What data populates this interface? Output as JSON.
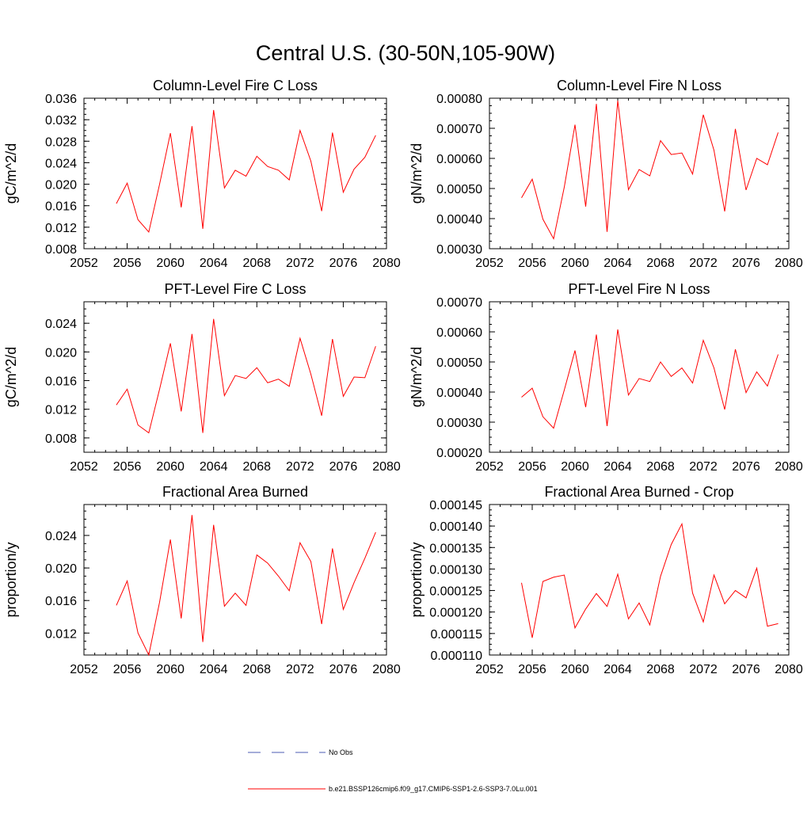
{
  "figure_title": "Central U.S. (30-50N,105-90W)",
  "chart_data": [
    {
      "type": "line",
      "title": "Column-Level Fire C Loss",
      "xlabel": "",
      "ylabel": "gC/m^2/d",
      "xlim": [
        2052,
        2080
      ],
      "ylim": [
        0.008,
        0.036
      ],
      "xticks": [
        "2052",
        "2056",
        "2060",
        "2064",
        "2068",
        "2072",
        "2076",
        "2080"
      ],
      "yticks": [
        "0.008",
        "0.012",
        "0.016",
        "0.020",
        "0.024",
        "0.028",
        "0.032",
        "0.036"
      ],
      "x": [
        2055,
        2056,
        2057,
        2058,
        2059,
        2060,
        2061,
        2062,
        2063,
        2064,
        2065,
        2066,
        2067,
        2068,
        2069,
        2070,
        2071,
        2072,
        2073,
        2074,
        2075,
        2076,
        2077,
        2078,
        2079
      ],
      "series": [
        {
          "name": "b.e21.BSSP126cmip6.f09_g17.CMIP6-SSP1-2.6-SSP3-7.0Lu.001",
          "color": "#ff0000",
          "values": [
            0.0164,
            0.0202,
            0.0134,
            0.0111,
            0.02,
            0.0295,
            0.0157,
            0.0308,
            0.0117,
            0.0338,
            0.0193,
            0.0226,
            0.0215,
            0.0252,
            0.0233,
            0.0226,
            0.0208,
            0.03,
            0.0243,
            0.015,
            0.0296,
            0.0185,
            0.0228,
            0.025,
            0.0291
          ]
        }
      ]
    },
    {
      "type": "line",
      "title": "Column-Level Fire N Loss",
      "xlabel": "",
      "ylabel": "gN/m^2/d",
      "xlim": [
        2052,
        2080
      ],
      "ylim": [
        0.0003,
        0.0008
      ],
      "xticks": [
        "2052",
        "2056",
        "2060",
        "2064",
        "2068",
        "2072",
        "2076",
        "2080"
      ],
      "yticks": [
        "0.00030",
        "0.00040",
        "0.00050",
        "0.00060",
        "0.00070",
        "0.00080"
      ],
      "x": [
        2055,
        2056,
        2057,
        2058,
        2059,
        2060,
        2061,
        2062,
        2063,
        2064,
        2065,
        2066,
        2067,
        2068,
        2069,
        2070,
        2071,
        2072,
        2073,
        2074,
        2075,
        2076,
        2077,
        2078,
        2079
      ],
      "series": [
        {
          "name": "b.e21.BSSP126cmip6.f09_g17.CMIP6-SSP1-2.6-SSP3-7.0Lu.001",
          "color": "#ff0000",
          "values": [
            0.000469,
            0.000531,
            0.000398,
            0.000333,
            0.000505,
            0.000712,
            0.00044,
            0.000781,
            0.000356,
            0.000792,
            0.000496,
            0.000563,
            0.000542,
            0.000659,
            0.000613,
            0.000618,
            0.000548,
            0.000745,
            0.000627,
            0.000424,
            0.000698,
            0.000495,
            0.0006,
            0.000579,
            0.000686
          ]
        }
      ]
    },
    {
      "type": "line",
      "title": "PFT-Level Fire C Loss",
      "xlabel": "",
      "ylabel": "gC/m^2/d",
      "xlim": [
        2052,
        2080
      ],
      "ylim": [
        0.006,
        0.027
      ],
      "xticks": [
        "2052",
        "2056",
        "2060",
        "2064",
        "2068",
        "2072",
        "2076",
        "2080"
      ],
      "yticks": [
        "0.008",
        "0.012",
        "0.016",
        "0.020",
        "0.024"
      ],
      "x": [
        2055,
        2056,
        2057,
        2058,
        2059,
        2060,
        2061,
        2062,
        2063,
        2064,
        2065,
        2066,
        2067,
        2068,
        2069,
        2070,
        2071,
        2072,
        2073,
        2074,
        2075,
        2076,
        2077,
        2078,
        2079
      ],
      "series": [
        {
          "name": "b.e21.BSSP126cmip6.f09_g17.CMIP6-SSP1-2.6-SSP3-7.0Lu.001",
          "color": "#ff0000",
          "values": [
            0.0126,
            0.0148,
            0.0098,
            0.0087,
            0.0148,
            0.0212,
            0.0117,
            0.0225,
            0.0087,
            0.0246,
            0.0139,
            0.0167,
            0.0163,
            0.0178,
            0.0157,
            0.0162,
            0.0152,
            0.0219,
            0.0169,
            0.0111,
            0.0218,
            0.0138,
            0.0165,
            0.0164,
            0.0208
          ]
        }
      ]
    },
    {
      "type": "line",
      "title": "PFT-Level Fire N Loss",
      "xlabel": "",
      "ylabel": "gN/m^2/d",
      "xlim": [
        2052,
        2080
      ],
      "ylim": [
        0.0002,
        0.0007
      ],
      "xticks": [
        "2052",
        "2056",
        "2060",
        "2064",
        "2068",
        "2072",
        "2076",
        "2080"
      ],
      "yticks": [
        "0.00020",
        "0.00030",
        "0.00040",
        "0.00050",
        "0.00060",
        "0.00070"
      ],
      "x": [
        2055,
        2056,
        2057,
        2058,
        2059,
        2060,
        2061,
        2062,
        2063,
        2064,
        2065,
        2066,
        2067,
        2068,
        2069,
        2070,
        2071,
        2072,
        2073,
        2074,
        2075,
        2076,
        2077,
        2078,
        2079
      ],
      "series": [
        {
          "name": "b.e21.BSSP126cmip6.f09_g17.CMIP6-SSP1-2.6-SSP3-7.0Lu.001",
          "color": "#ff0000",
          "values": [
            0.000383,
            0.000413,
            0.000318,
            0.00028,
            0.000407,
            0.000538,
            0.00035,
            0.000591,
            0.000287,
            0.000608,
            0.00039,
            0.000445,
            0.000435,
            0.0005,
            0.000452,
            0.00048,
            0.00043,
            0.000572,
            0.00048,
            0.000342,
            0.000542,
            0.000398,
            0.000467,
            0.00042,
            0.000525
          ]
        }
      ]
    },
    {
      "type": "line",
      "title": "Fractional Area Burned",
      "xlabel": "",
      "ylabel": "proportion/y",
      "xlim": [
        2052,
        2080
      ],
      "ylim": [
        0.0093,
        0.0278
      ],
      "xticks": [
        "2052",
        "2056",
        "2060",
        "2064",
        "2068",
        "2072",
        "2076",
        "2080"
      ],
      "yticks": [
        "0.012",
        "0.016",
        "0.020",
        "0.024"
      ],
      "x": [
        2055,
        2056,
        2057,
        2058,
        2059,
        2060,
        2061,
        2062,
        2063,
        2064,
        2065,
        2066,
        2067,
        2068,
        2069,
        2070,
        2071,
        2072,
        2073,
        2074,
        2075,
        2076,
        2077,
        2078,
        2079
      ],
      "series": [
        {
          "name": "b.e21.BSSP126cmip6.f09_g17.CMIP6-SSP1-2.6-SSP3-7.0Lu.001",
          "color": "#ff0000",
          "values": [
            0.0154,
            0.0184,
            0.012,
            0.0093,
            0.0158,
            0.0235,
            0.0138,
            0.0265,
            0.0109,
            0.0253,
            0.0153,
            0.0169,
            0.0154,
            0.0216,
            0.0206,
            0.019,
            0.0172,
            0.0231,
            0.0208,
            0.0131,
            0.0224,
            0.0149,
            0.0182,
            0.0212,
            0.0244
          ]
        }
      ]
    },
    {
      "type": "line",
      "title": "Fractional Area Burned - Crop",
      "xlabel": "",
      "ylabel": "proportion/y",
      "xlim": [
        2052,
        2080
      ],
      "ylim": [
        0.00011,
        0.000145
      ],
      "xticks": [
        "2052",
        "2056",
        "2060",
        "2064",
        "2068",
        "2072",
        "2076",
        "2080"
      ],
      "yticks": [
        "0.000110",
        "0.000115",
        "0.000120",
        "0.000125",
        "0.000130",
        "0.000135",
        "0.000140",
        "0.000145"
      ],
      "x": [
        2055,
        2056,
        2057,
        2058,
        2059,
        2060,
        2061,
        2062,
        2063,
        2064,
        2065,
        2066,
        2067,
        2068,
        2069,
        2070,
        2071,
        2072,
        2073,
        2074,
        2075,
        2076,
        2077,
        2078,
        2079
      ],
      "series": [
        {
          "name": "b.e21.BSSP126cmip6.f09_g17.CMIP6-SSP1-2.6-SSP3-7.0Lu.001",
          "color": "#ff0000",
          "values": [
            0.0001268,
            0.000114,
            0.0001271,
            0.0001281,
            0.0001286,
            0.0001163,
            0.0001207,
            0.0001243,
            0.0001213,
            0.0001288,
            0.0001184,
            0.0001221,
            0.000117,
            0.0001283,
            0.0001357,
            0.0001405,
            0.0001244,
            0.0001177,
            0.0001286,
            0.0001219,
            0.000125,
            0.0001233,
            0.0001302,
            0.0001167,
            0.0001173
          ]
        }
      ]
    }
  ],
  "legend": [
    {
      "label": "No Obs",
      "color": "#4b5bb3",
      "dash": true
    },
    {
      "label": "b.e21.BSSP126cmip6.f09_g17.CMIP6-SSP1-2.6-SSP3-7.0Lu.001",
      "color": "#ff0000",
      "dash": false
    }
  ]
}
